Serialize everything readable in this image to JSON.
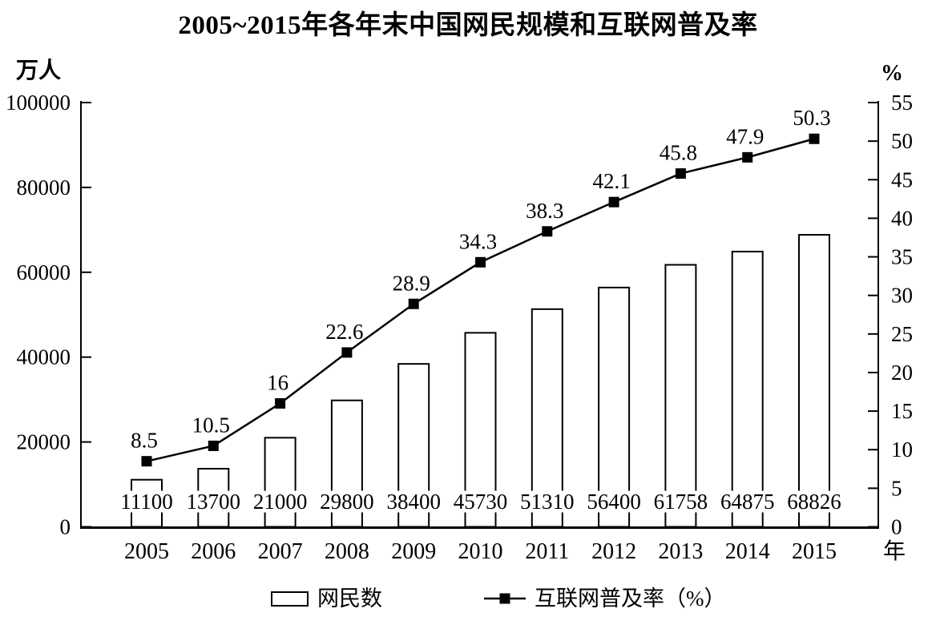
{
  "chart_data": {
    "type": "combo-bar-line",
    "title": "2005~2015年各年末中国网民规模和互联网普及率",
    "categories": [
      "2005",
      "2006",
      "2007",
      "2008",
      "2009",
      "2010",
      "2011",
      "2012",
      "2013",
      "2014",
      "2015"
    ],
    "x_axis_label": "年",
    "left_axis": {
      "label": "万人",
      "min": 0,
      "max": 100000,
      "tick_labels": [
        "0",
        "20000",
        "40000",
        "60000",
        "80000",
        "100000"
      ]
    },
    "right_axis": {
      "label": "%",
      "min": 0,
      "max": 55,
      "tick_labels": [
        "0",
        "5",
        "10",
        "15",
        "20",
        "25",
        "30",
        "35",
        "40",
        "45",
        "50",
        "55"
      ]
    },
    "series": [
      {
        "name": "网民数",
        "type": "bar",
        "axis": "left",
        "values": [
          11100,
          13700,
          21000,
          29800,
          38400,
          45730,
          51310,
          56400,
          61758,
          64875,
          68826
        ],
        "value_labels": [
          "11100",
          "13700",
          "21000",
          "29800",
          "38400",
          "45730",
          "51310",
          "56400",
          "61758",
          "64875",
          "68826"
        ],
        "fill": "#ffffff",
        "stroke": "#000000"
      },
      {
        "name": "互联网普及率（%）",
        "type": "line",
        "axis": "right",
        "values": [
          8.5,
          10.5,
          16,
          22.6,
          28.9,
          34.3,
          38.3,
          42.1,
          45.8,
          47.9,
          50.3
        ],
        "value_labels": [
          "8.5",
          "10.5",
          "16",
          "22.6",
          "28.9",
          "34.3",
          "38.3",
          "42.1",
          "45.8",
          "47.9",
          "50.3"
        ],
        "color": "#000000",
        "marker": "filled-square"
      }
    ],
    "legend": {
      "position": "bottom",
      "items": [
        "网民数",
        "互联网普及率（%）"
      ]
    },
    "grid": "off",
    "background": "#ffffff"
  }
}
